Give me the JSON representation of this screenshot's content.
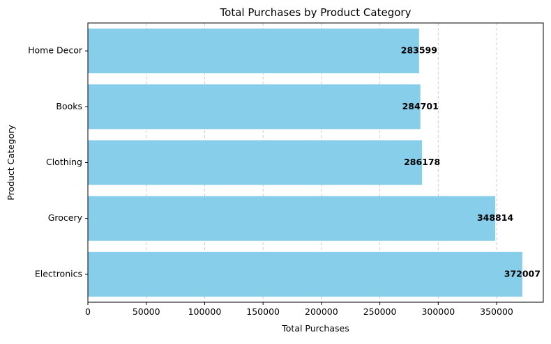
{
  "chart_data": {
    "type": "bar",
    "orientation": "horizontal",
    "title": "Total Purchases by Product Category",
    "xlabel": "Total Purchases",
    "ylabel": "Product Category",
    "categories": [
      "Electronics",
      "Grocery",
      "Clothing",
      "Books",
      "Home Decor"
    ],
    "values": [
      372007,
      348814,
      286178,
      284701,
      283599
    ],
    "data_labels": [
      "372007",
      "348814",
      "286178",
      "284701",
      "283599"
    ],
    "xlim": [
      0,
      390000
    ],
    "x_ticks": [
      0,
      50000,
      100000,
      150000,
      200000,
      250000,
      300000,
      350000
    ],
    "x_tick_labels": [
      "0",
      "50000",
      "100000",
      "150000",
      "200000",
      "250000",
      "300000",
      "350000"
    ],
    "grid": "x-dashed",
    "bar_color": "#87ceeb",
    "grid_color": "#c8c8c8"
  }
}
